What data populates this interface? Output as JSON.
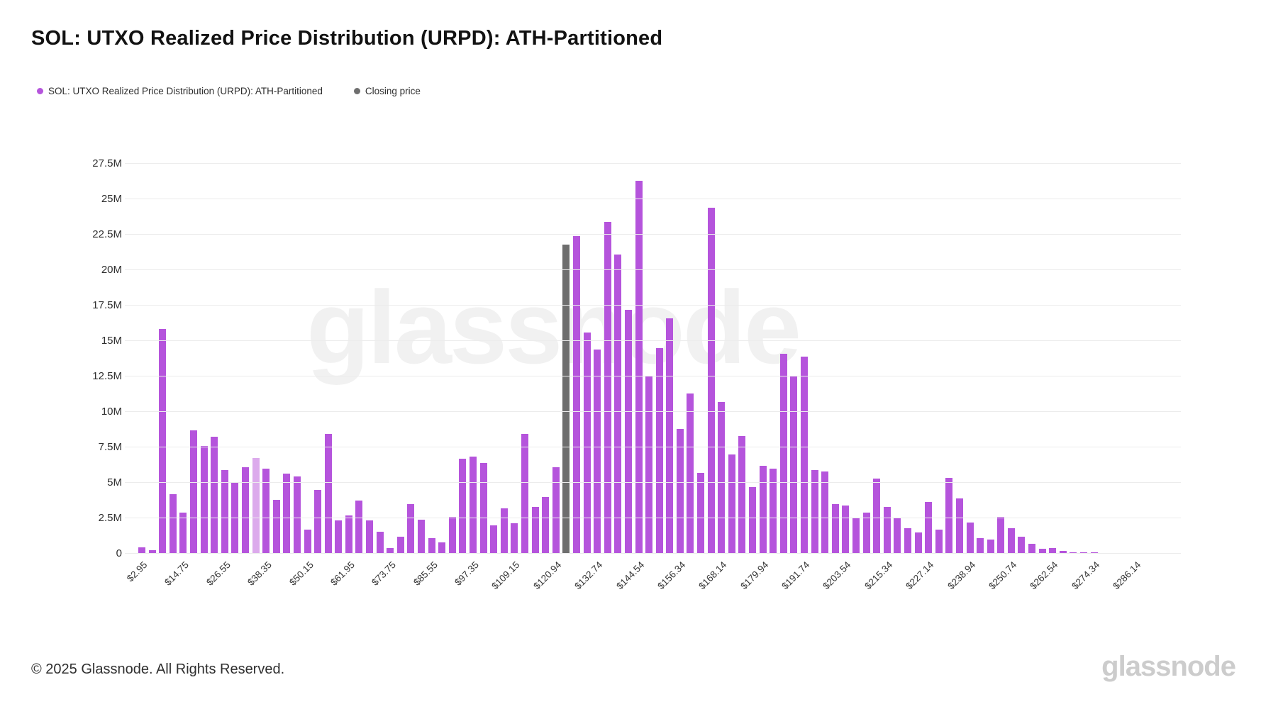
{
  "title": "SOL: UTXO Realized Price Distribution (URPD): ATH-Partitioned",
  "legend": {
    "series": [
      {
        "label": "SOL: UTXO Realized Price Distribution (URPD): ATH-Partitioned",
        "color": "#b554dc"
      },
      {
        "label": "Closing price",
        "color": "#6e6e6e"
      }
    ]
  },
  "watermark_text": "glassnode",
  "footer": {
    "copyright": "© 2025 Glassnode. All Rights Reserved.",
    "brand_logo_text": "glassnode"
  },
  "colors": {
    "bar_purple": "#b554dc",
    "bar_light_purple": "#dcaaec",
    "bar_closing_gray": "#6e6e6e",
    "gridline": "#ececec",
    "title_text": "#121212",
    "axis_text": "#2e2e2e"
  },
  "chart_data": {
    "type": "bar",
    "title": "SOL: UTXO Realized Price Distribution (URPD): ATH-Partitioned",
    "xlabel": "",
    "ylabel": "",
    "unit": "SOL supply (millions)",
    "ylim": [
      0,
      28.9
    ],
    "grid": "horizontal",
    "legend_position": "top-left",
    "ytick_labels": [
      "0",
      "2.5M",
      "5M",
      "7.5M",
      "10M",
      "12.5M",
      "15M",
      "17.5M",
      "20M",
      "22.5M",
      "25M",
      "27.5M"
    ],
    "ytick_step_millions": 2.5,
    "xtick_labels": [
      "$2.95",
      "$14.75",
      "$26.55",
      "$38.35",
      "$50.15",
      "$61.95",
      "$73.75",
      "$85.55",
      "$97.35",
      "$109.15",
      "$120.94",
      "$132.74",
      "$144.54",
      "$156.34",
      "$168.14",
      "$179.94",
      "$191.74",
      "$203.54",
      "$215.34",
      "$227.14",
      "$238.94",
      "$250.74",
      "$262.54",
      "$274.34",
      "$286.14"
    ],
    "xtick_every_n_bars": 4,
    "values_millions": [
      0.45,
      0.25,
      15.85,
      4.2,
      2.9,
      8.7,
      7.6,
      8.25,
      5.9,
      5.05,
      6.1,
      6.75,
      6.0,
      3.8,
      5.65,
      5.45,
      1.7,
      4.5,
      8.45,
      2.35,
      2.7,
      3.75,
      2.35,
      1.55,
      0.4,
      1.2,
      3.5,
      2.4,
      1.1,
      0.8,
      2.6,
      6.7,
      6.85,
      6.4,
      2.0,
      3.2,
      2.15,
      8.45,
      3.3,
      4.0,
      6.1,
      21.8,
      22.4,
      15.6,
      14.4,
      23.4,
      21.1,
      17.2,
      26.3,
      12.5,
      14.5,
      16.6,
      8.8,
      11.3,
      5.7,
      24.4,
      10.7,
      7.0,
      8.3,
      4.7,
      6.2,
      6.0,
      14.1,
      12.5,
      13.9,
      5.9,
      5.8,
      3.5,
      3.4,
      2.5,
      2.9,
      5.3,
      3.3,
      2.5,
      1.8,
      1.5,
      3.65,
      1.7,
      5.35,
      3.9,
      2.2,
      1.1,
      1.0,
      2.6,
      1.8,
      1.2,
      0.7,
      0.35,
      0.4,
      0.2,
      0.12,
      0.1,
      0.12,
      0.06,
      0.05,
      0.06,
      0.04,
      0.05,
      0.03,
      0.05
    ],
    "closing_price_bar_index": 41,
    "closing_price_value_millions": 21.8,
    "light_shade_bar_index": 11
  }
}
